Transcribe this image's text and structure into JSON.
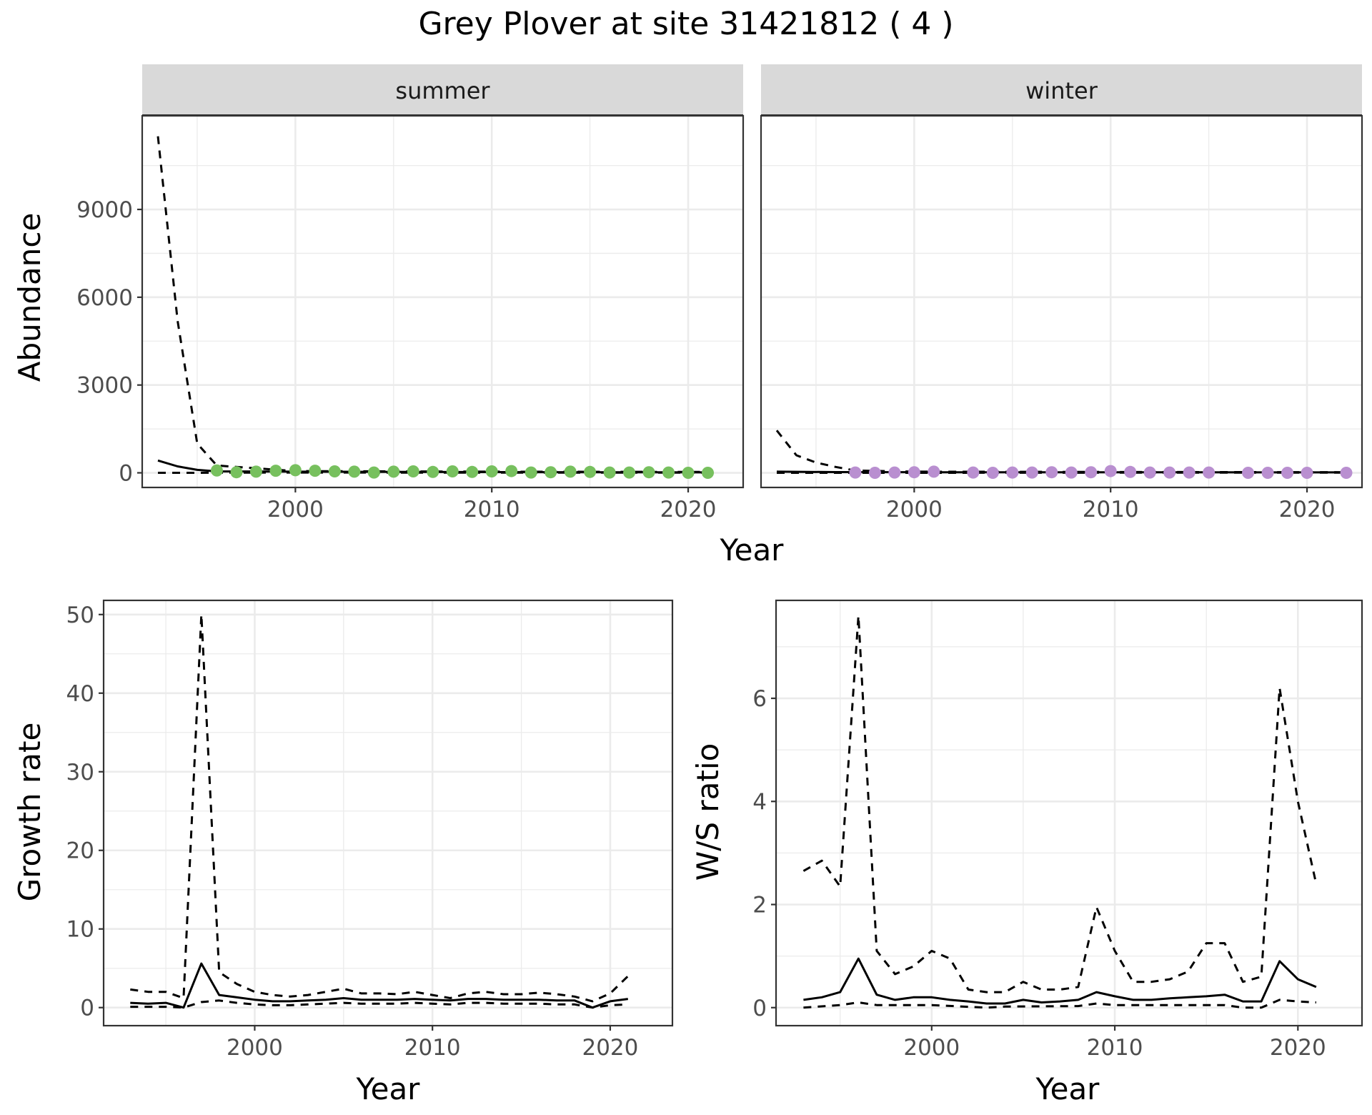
{
  "figure": {
    "title": "Grey Plover at site 31421812 ( 4 )",
    "colors": {
      "summer_points": "#77c05e",
      "winter_points": "#b98fd0",
      "lines": "#000000",
      "grid": "#ebebeb",
      "strip_fill": "#d9d9d9"
    }
  },
  "chart_data": [
    {
      "id": "abundance",
      "type": "line",
      "facets": [
        "summer",
        "winter"
      ],
      "xlabel": "Year",
      "ylabel": "Abundance",
      "xlim": [
        1992.2,
        2022.8
      ],
      "ylim": [
        -500,
        12200
      ],
      "xticks": [
        2000,
        2010,
        2020
      ],
      "yticks": [
        0,
        3000,
        6000,
        9000
      ],
      "grid": true,
      "panels": [
        {
          "facet": "summer",
          "point_color": "#77c05e",
          "series": [
            {
              "style": "dashed",
              "x": [
                1993,
                1994,
                1995,
                1996,
                2000,
                2010,
                2021
              ],
              "y": [
                11500,
                5200,
                1000,
                250,
                60,
                40,
                30
              ]
            },
            {
              "style": "solid",
              "x": [
                1993,
                1994,
                1995,
                1996,
                2000,
                2010,
                2021
              ],
              "y": [
                420,
                220,
                100,
                50,
                40,
                25,
                15
              ]
            },
            {
              "style": "dashed",
              "x": [
                1993,
                1995,
                1996,
                2000,
                2010,
                2021
              ],
              "y": [
                0,
                0,
                5,
                10,
                5,
                5
              ]
            }
          ],
          "points": {
            "x": [
              1996,
              1997,
              1998,
              1999,
              2000,
              2001,
              2002,
              2003,
              2004,
              2005,
              2006,
              2007,
              2008,
              2009,
              2010,
              2011,
              2012,
              2013,
              2014,
              2015,
              2016,
              2017,
              2018,
              2019,
              2020,
              2021
            ],
            "y": [
              80,
              20,
              40,
              70,
              90,
              70,
              50,
              40,
              10,
              40,
              50,
              30,
              50,
              30,
              50,
              60,
              10,
              20,
              40,
              30,
              10,
              10,
              20,
              10,
              0,
              0
            ]
          }
        },
        {
          "facet": "winter",
          "point_color": "#b98fd0",
          "series": [
            {
              "style": "dashed",
              "x": [
                1993,
                1994,
                1995,
                1996,
                1997,
                2000,
                2010,
                2022
              ],
              "y": [
                1450,
                600,
                350,
                200,
                80,
                40,
                30,
                20
              ]
            },
            {
              "style": "solid",
              "x": [
                1993,
                1996,
                2000,
                2010,
                2022
              ],
              "y": [
                40,
                25,
                20,
                20,
                15
              ]
            },
            {
              "style": "dashed",
              "x": [
                1993,
                2000,
                2010,
                2022
              ],
              "y": [
                0,
                0,
                5,
                5
              ]
            }
          ],
          "points": {
            "x": [
              1997,
              1998,
              1999,
              2000,
              2001,
              2003,
              2004,
              2005,
              2006,
              2007,
              2008,
              2009,
              2010,
              2011,
              2012,
              2013,
              2014,
              2015,
              2017,
              2018,
              2019,
              2020,
              2022
            ],
            "y": [
              10,
              0,
              10,
              20,
              40,
              10,
              0,
              10,
              10,
              20,
              10,
              20,
              60,
              30,
              10,
              10,
              10,
              10,
              0,
              0,
              0,
              0,
              0
            ]
          }
        }
      ]
    },
    {
      "id": "growth",
      "type": "line",
      "xlabel": "Year",
      "ylabel": "Growth rate",
      "xlim": [
        1991.5,
        2023.5
      ],
      "ylim": [
        -2.3,
        51.8
      ],
      "xticks": [
        2000,
        2010,
        2020
      ],
      "yticks": [
        0,
        10,
        20,
        30,
        40,
        50
      ],
      "grid": true,
      "series": [
        {
          "style": "dashed",
          "x": [
            1993,
            1994,
            1995,
            1996,
            1997,
            1998,
            1999,
            2000,
            2001,
            2002,
            2003,
            2004,
            2005,
            2006,
            2007,
            2008,
            2009,
            2010,
            2011,
            2012,
            2013,
            2014,
            2015,
            2016,
            2017,
            2018,
            2019,
            2020,
            2021
          ],
          "y": [
            2.3,
            2.0,
            2.0,
            1.2,
            50.0,
            4.5,
            3.0,
            2.0,
            1.6,
            1.4,
            1.6,
            2.0,
            2.4,
            1.8,
            1.8,
            1.7,
            2.0,
            1.6,
            1.2,
            1.8,
            2.0,
            1.7,
            1.7,
            1.9,
            1.7,
            1.4,
            0.8,
            1.8,
            4.0
          ]
        },
        {
          "style": "solid",
          "x": [
            1993,
            1994,
            1995,
            1996,
            1997,
            1998,
            1999,
            2000,
            2001,
            2002,
            2003,
            2004,
            2005,
            2006,
            2007,
            2008,
            2009,
            2010,
            2011,
            2012,
            2013,
            2014,
            2015,
            2016,
            2017,
            2018,
            2019,
            2020,
            2021
          ],
          "y": [
            0.6,
            0.5,
            0.6,
            0.0,
            5.6,
            1.6,
            1.3,
            1.0,
            0.8,
            0.8,
            0.9,
            1.0,
            1.2,
            1.0,
            1.0,
            1.0,
            1.1,
            1.0,
            0.9,
            1.1,
            1.1,
            1.0,
            1.0,
            1.0,
            0.9,
            0.9,
            0.0,
            0.8,
            1.1
          ]
        },
        {
          "style": "dashed",
          "x": [
            1993,
            1994,
            1995,
            1996,
            1997,
            1998,
            1999,
            2000,
            2001,
            2002,
            2003,
            2004,
            2005,
            2006,
            2007,
            2008,
            2009,
            2010,
            2011,
            2012,
            2013,
            2014,
            2015,
            2016,
            2017,
            2018,
            2019,
            2020,
            2021
          ],
          "y": [
            0.1,
            0.1,
            0.1,
            0.0,
            0.7,
            0.9,
            0.6,
            0.4,
            0.3,
            0.3,
            0.4,
            0.5,
            0.6,
            0.5,
            0.5,
            0.5,
            0.6,
            0.5,
            0.4,
            0.6,
            0.6,
            0.5,
            0.5,
            0.5,
            0.4,
            0.4,
            0.0,
            0.3,
            0.4
          ]
        }
      ]
    },
    {
      "id": "ws_ratio",
      "type": "line",
      "xlabel": "Year",
      "ylabel": "W/S ratio",
      "xlim": [
        1991.5,
        2023.5
      ],
      "ylim": [
        -0.35,
        7.9
      ],
      "xticks": [
        2000,
        2010,
        2020
      ],
      "yticks": [
        0,
        2,
        4,
        6
      ],
      "grid": true,
      "series": [
        {
          "style": "dashed",
          "x": [
            1993,
            1994,
            1995,
            1996,
            1997,
            1998,
            1999,
            2000,
            2001,
            2002,
            2003,
            2004,
            2005,
            2006,
            2007,
            2008,
            2009,
            2010,
            2011,
            2012,
            2013,
            2014,
            2015,
            2016,
            2017,
            2018,
            2019,
            2020,
            2021
          ],
          "y": [
            2.65,
            2.85,
            2.35,
            7.6,
            1.1,
            0.65,
            0.8,
            1.1,
            0.95,
            0.35,
            0.3,
            0.3,
            0.5,
            0.35,
            0.35,
            0.4,
            1.95,
            1.1,
            0.5,
            0.5,
            0.55,
            0.7,
            1.25,
            1.25,
            0.5,
            0.6,
            6.2,
            4.0,
            2.4
          ]
        },
        {
          "style": "solid",
          "x": [
            1993,
            1994,
            1995,
            1996,
            1997,
            1998,
            1999,
            2000,
            2001,
            2002,
            2003,
            2004,
            2005,
            2006,
            2007,
            2008,
            2009,
            2010,
            2011,
            2012,
            2013,
            2014,
            2015,
            2016,
            2017,
            2018,
            2019,
            2020,
            2021
          ],
          "y": [
            0.15,
            0.2,
            0.3,
            0.95,
            0.25,
            0.15,
            0.2,
            0.2,
            0.15,
            0.12,
            0.08,
            0.08,
            0.15,
            0.1,
            0.12,
            0.15,
            0.3,
            0.22,
            0.15,
            0.15,
            0.18,
            0.2,
            0.22,
            0.25,
            0.12,
            0.12,
            0.9,
            0.55,
            0.4
          ]
        },
        {
          "style": "dashed",
          "x": [
            1993,
            1995,
            1996,
            1997,
            2000,
            2003,
            2004,
            2008,
            2009,
            2010,
            2015,
            2016,
            2017,
            2018,
            2019,
            2020,
            2021
          ],
          "y": [
            0.0,
            0.05,
            0.1,
            0.05,
            0.05,
            0.0,
            0.02,
            0.03,
            0.08,
            0.05,
            0.05,
            0.05,
            0.0,
            0.0,
            0.15,
            0.12,
            0.1
          ]
        }
      ]
    }
  ]
}
